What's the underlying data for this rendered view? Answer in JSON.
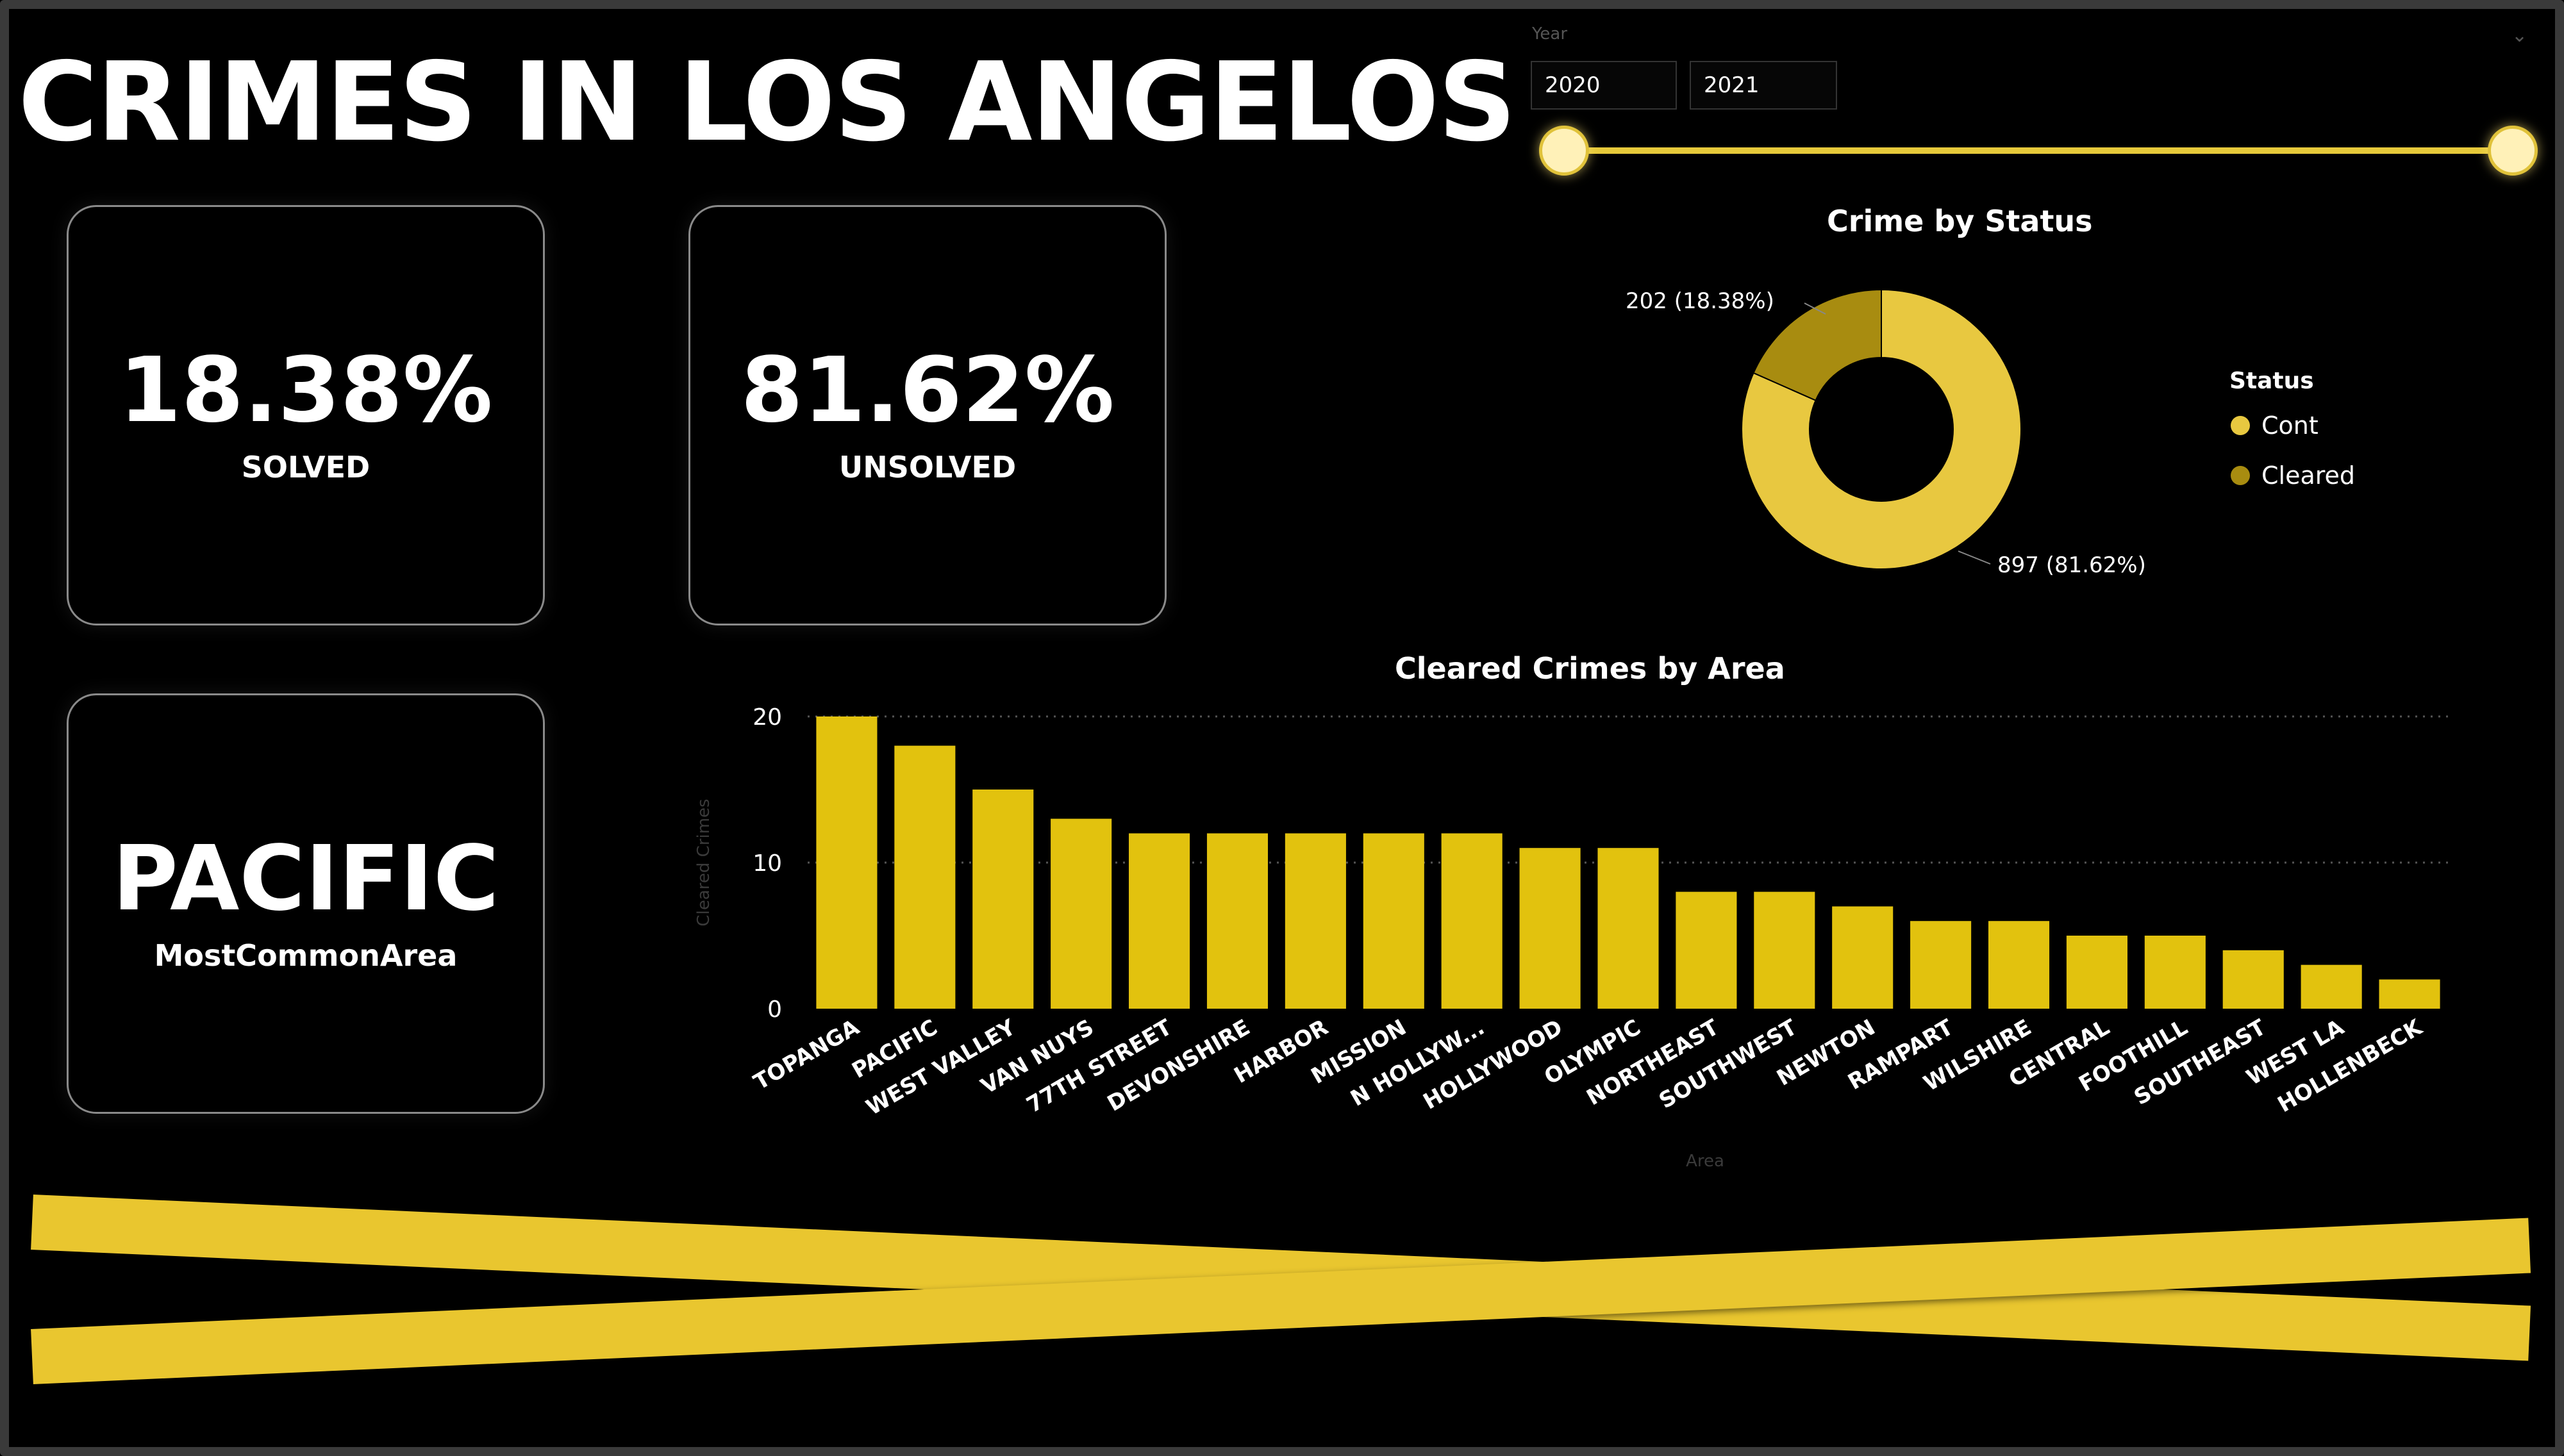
{
  "dashboard": {
    "title": "CRIMES IN LOS ANGELOS"
  },
  "cards": {
    "solved": {
      "value": "18.38%",
      "label": "SOLVED"
    },
    "unsolved": {
      "value": "81.62%",
      "label": "UNSOLVED"
    },
    "area": {
      "value": "PACIFIC",
      "label": "MostCommonArea"
    }
  },
  "slicer": {
    "label": "Year",
    "from": "2020",
    "to": "2021",
    "range_fraction": [
      0,
      1
    ]
  },
  "colors": {
    "accent": "#e6c200",
    "bar": "#e2c20e",
    "cont": "#e8c840",
    "cleared": "#a88c10",
    "tape": "#e9c62f"
  },
  "chart_data": [
    {
      "type": "pie",
      "title": "Crime by Status",
      "legend_title": "Status",
      "legend_position": "right",
      "slices": [
        {
          "name": "Cont",
          "value": 897,
          "label": "897 (81.62%)"
        },
        {
          "name": "Cleared",
          "value": 202,
          "label": "202 (18.38%)"
        }
      ]
    },
    {
      "type": "bar",
      "title": "Cleared Crimes by Area",
      "xlabel": "Area",
      "ylabel": "Cleared Crimes",
      "ylim": [
        0,
        20
      ],
      "yticks": [
        0,
        10,
        20
      ],
      "grid": true,
      "categories": [
        "TOPANGA",
        "PACIFIC",
        "WEST VALLEY",
        "VAN NUYS",
        "77TH STREET",
        "DEVONSHIRE",
        "HARBOR",
        "MISSION",
        "N HOLLYW...",
        "HOLLYWOOD",
        "OLYMPIC",
        "NORTHEAST",
        "SOUTHWEST",
        "NEWTON",
        "RAMPART",
        "WILSHIRE",
        "CENTRAL",
        "FOOTHILL",
        "SOUTHEAST",
        "WEST LA",
        "HOLLENBECK"
      ],
      "values": [
        20,
        18,
        15,
        13,
        12,
        12,
        12,
        12,
        12,
        11,
        11,
        8,
        8,
        7,
        6,
        6,
        5,
        5,
        4,
        3,
        2
      ]
    }
  ]
}
